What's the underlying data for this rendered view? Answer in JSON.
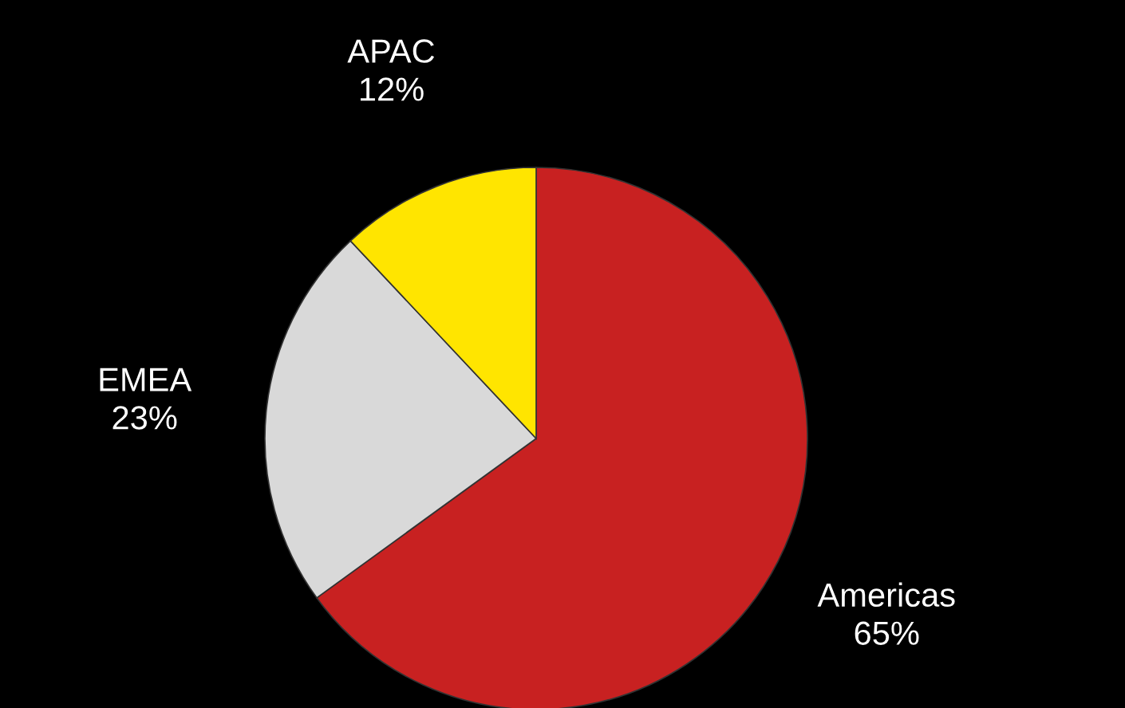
{
  "chart_data": {
    "type": "pie",
    "categories": [
      "Americas",
      "EMEA",
      "APAC"
    ],
    "values": [
      65,
      23,
      12
    ],
    "colors": [
      "#c82121",
      "#d9d9d9",
      "#ffe500"
    ],
    "value_labels": [
      "65%",
      "23%",
      "12%"
    ],
    "legend": false
  }
}
